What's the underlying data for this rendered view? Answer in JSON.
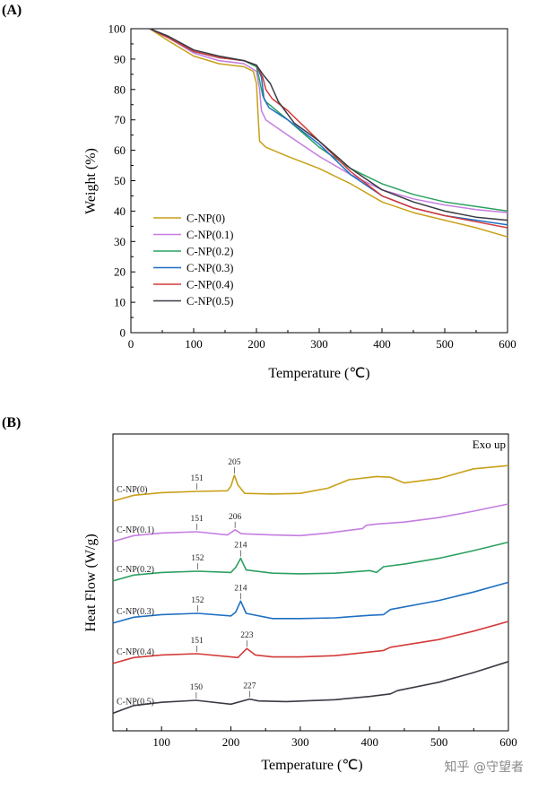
{
  "chart_data": [
    {
      "panel": "(A)",
      "type": "line",
      "xlabel": "Temperature (℃)",
      "ylabel": "Weight (%)",
      "xlim": [
        0,
        600
      ],
      "ylim": [
        0,
        100
      ],
      "xticks": [
        0,
        100,
        200,
        300,
        400,
        500,
        600
      ],
      "yticks": [
        0,
        10,
        20,
        30,
        40,
        50,
        60,
        70,
        80,
        90,
        100
      ],
      "grid": false,
      "legend_position": "bottom-left",
      "series": [
        {
          "name": "C-NP(0)",
          "color": "#c8a018",
          "points": [
            [
              30,
              100
            ],
            [
              60,
              96
            ],
            [
              100,
              91
            ],
            [
              140,
              88.5
            ],
            [
              180,
              87.5
            ],
            [
              195,
              86
            ],
            [
              200,
              82
            ],
            [
              203,
              70
            ],
            [
              205,
              63
            ],
            [
              215,
              61
            ],
            [
              250,
              58
            ],
            [
              300,
              54
            ],
            [
              350,
              49
            ],
            [
              400,
              43
            ],
            [
              450,
              39.5
            ],
            [
              500,
              37
            ],
            [
              550,
              34.5
            ],
            [
              600,
              31.5
            ]
          ]
        },
        {
          "name": "C-NP(0.1)",
          "color": "#c47ee0",
          "points": [
            [
              30,
              100
            ],
            [
              60,
              97
            ],
            [
              100,
              92
            ],
            [
              140,
              89.5
            ],
            [
              180,
              88.5
            ],
            [
              200,
              86
            ],
            [
              205,
              80
            ],
            [
              208,
              73
            ],
            [
              215,
              70
            ],
            [
              250,
              65
            ],
            [
              300,
              58
            ],
            [
              350,
              52
            ],
            [
              400,
              47
            ],
            [
              450,
              44
            ],
            [
              500,
              42
            ],
            [
              550,
              40.5
            ],
            [
              600,
              39.5
            ]
          ]
        },
        {
          "name": "C-NP(0.2)",
          "color": "#2ca060",
          "points": [
            [
              30,
              100
            ],
            [
              60,
              97
            ],
            [
              100,
              92.5
            ],
            [
              140,
              90.5
            ],
            [
              180,
              89.5
            ],
            [
              200,
              87.5
            ],
            [
              205,
              83
            ],
            [
              210,
              78
            ],
            [
              215,
              76
            ],
            [
              250,
              70
            ],
            [
              300,
              61
            ],
            [
              350,
              54
            ],
            [
              400,
              49
            ],
            [
              450,
              45.5
            ],
            [
              500,
              43
            ],
            [
              550,
              41.5
            ],
            [
              600,
              40
            ]
          ]
        },
        {
          "name": "C-NP(0.3)",
          "color": "#1f6fc4",
          "points": [
            [
              30,
              100
            ],
            [
              60,
              97
            ],
            [
              100,
              92.5
            ],
            [
              140,
              90.5
            ],
            [
              180,
              89.5
            ],
            [
              200,
              88
            ],
            [
              208,
              84
            ],
            [
              212,
              77
            ],
            [
              220,
              74
            ],
            [
              250,
              70
            ],
            [
              300,
              62
            ],
            [
              350,
              52
            ],
            [
              400,
              45
            ],
            [
              450,
              41
            ],
            [
              500,
              38.5
            ],
            [
              550,
              37
            ],
            [
              600,
              35.5
            ]
          ]
        },
        {
          "name": "C-NP(0.4)",
          "color": "#d43a3a",
          "points": [
            [
              30,
              100
            ],
            [
              60,
              97
            ],
            [
              100,
              92.5
            ],
            [
              140,
              90.5
            ],
            [
              180,
              89.5
            ],
            [
              200,
              88
            ],
            [
              210,
              84
            ],
            [
              215,
              80
            ],
            [
              225,
              77
            ],
            [
              250,
              73
            ],
            [
              300,
              63
            ],
            [
              350,
              53
            ],
            [
              400,
              45
            ],
            [
              450,
              41
            ],
            [
              500,
              38.5
            ],
            [
              550,
              36.5
            ],
            [
              600,
              34.5
            ]
          ]
        },
        {
          "name": "C-NP(0.5)",
          "color": "#3a3a44",
          "points": [
            [
              30,
              100
            ],
            [
              60,
              97.5
            ],
            [
              100,
              93
            ],
            [
              140,
              91
            ],
            [
              180,
              89.5
            ],
            [
              200,
              88
            ],
            [
              212,
              84.5
            ],
            [
              222,
              82
            ],
            [
              235,
              76
            ],
            [
              260,
              69
            ],
            [
              300,
              63
            ],
            [
              350,
              54
            ],
            [
              400,
              47
            ],
            [
              450,
              43
            ],
            [
              500,
              40
            ],
            [
              550,
              38
            ],
            [
              600,
              37
            ]
          ]
        }
      ]
    },
    {
      "panel": "(B)",
      "type": "line",
      "xlabel": "Temperature (℃)",
      "ylabel": "Heat Flow (W/g)",
      "xlim": [
        30,
        600
      ],
      "xticks": [
        100,
        200,
        300,
        400,
        500,
        600
      ],
      "annotation_corner": "Exo up",
      "grid": false,
      "series": [
        {
          "name": "C-NP(0)",
          "color": "#c8a018",
          "peak_labels": [
            "151",
            "205"
          ],
          "peaks": [
            151,
            205
          ],
          "points": [
            [
              30,
              -1.5
            ],
            [
              60,
              -0.6
            ],
            [
              100,
              -0.2
            ],
            [
              151,
              0
            ],
            [
              195,
              0.1
            ],
            [
              200,
              0.8
            ],
            [
              205,
              2.5
            ],
            [
              210,
              1.0
            ],
            [
              220,
              -0.3
            ],
            [
              260,
              -0.4
            ],
            [
              300,
              -0.3
            ],
            [
              340,
              0.5
            ],
            [
              370,
              1.8
            ],
            [
              410,
              2.3
            ],
            [
              430,
              2.2
            ],
            [
              450,
              1.3
            ],
            [
              500,
              2.0
            ],
            [
              550,
              3.5
            ],
            [
              600,
              4.0
            ]
          ]
        },
        {
          "name": "C-NP(0.1)",
          "color": "#c47ee0",
          "peak_labels": [
            "151",
            "206"
          ],
          "peaks": [
            151,
            206
          ],
          "points": [
            [
              30,
              -1.5
            ],
            [
              60,
              -0.6
            ],
            [
              100,
              -0.2
            ],
            [
              151,
              0
            ],
            [
              195,
              -0.5
            ],
            [
              206,
              0.3
            ],
            [
              215,
              -0.3
            ],
            [
              260,
              -0.5
            ],
            [
              300,
              -0.6
            ],
            [
              340,
              -0.2
            ],
            [
              390,
              0.5
            ],
            [
              395,
              1.0
            ],
            [
              410,
              1.2
            ],
            [
              450,
              1.5
            ],
            [
              500,
              2.2
            ],
            [
              550,
              3.2
            ],
            [
              600,
              4.3
            ]
          ]
        },
        {
          "name": "C-NP(0.2)",
          "color": "#2ca060",
          "peak_labels": [
            "152",
            "214"
          ],
          "peaks": [
            152,
            214
          ],
          "points": [
            [
              30,
              -1.5
            ],
            [
              60,
              -0.6
            ],
            [
              100,
              -0.2
            ],
            [
              152,
              0
            ],
            [
              200,
              -0.2
            ],
            [
              207,
              0.6
            ],
            [
              214,
              2.0
            ],
            [
              222,
              0.2
            ],
            [
              260,
              -0.3
            ],
            [
              300,
              -0.4
            ],
            [
              350,
              -0.3
            ],
            [
              400,
              0.1
            ],
            [
              410,
              -0.2
            ],
            [
              420,
              0.7
            ],
            [
              450,
              1.1
            ],
            [
              500,
              2.0
            ],
            [
              550,
              3.2
            ],
            [
              600,
              4.5
            ]
          ]
        },
        {
          "name": "C-NP(0.3)",
          "color": "#1f6fc4",
          "peak_labels": [
            "152",
            "214"
          ],
          "peaks": [
            152,
            214
          ],
          "points": [
            [
              30,
              -1.5
            ],
            [
              60,
              -0.6
            ],
            [
              100,
              -0.2
            ],
            [
              152,
              0
            ],
            [
              200,
              -0.4
            ],
            [
              207,
              0.2
            ],
            [
              214,
              1.9
            ],
            [
              222,
              0
            ],
            [
              260,
              -0.8
            ],
            [
              300,
              -0.8
            ],
            [
              350,
              -0.7
            ],
            [
              400,
              -0.3
            ],
            [
              420,
              -0.2
            ],
            [
              430,
              0.6
            ],
            [
              500,
              2.0
            ],
            [
              550,
              3.3
            ],
            [
              600,
              4.8
            ]
          ]
        },
        {
          "name": "C-NP(0.4)",
          "color": "#d43a3a",
          "peak_labels": [
            "151",
            "223"
          ],
          "peaks": [
            151,
            223
          ],
          "points": [
            [
              30,
              -1.5
            ],
            [
              60,
              -0.6
            ],
            [
              100,
              -0.2
            ],
            [
              151,
              0
            ],
            [
              210,
              -0.6
            ],
            [
              223,
              0.8
            ],
            [
              235,
              -0.2
            ],
            [
              260,
              -0.5
            ],
            [
              300,
              -0.5
            ],
            [
              350,
              -0.3
            ],
            [
              420,
              0.5
            ],
            [
              430,
              1.0
            ],
            [
              500,
              2.2
            ],
            [
              550,
              3.5
            ],
            [
              600,
              5.0
            ]
          ]
        },
        {
          "name": "C-NP(0.5)",
          "color": "#3a3a44",
          "peak_labels": [
            "150",
            "227"
          ],
          "peaks": [
            150,
            227
          ],
          "points": [
            [
              30,
              -2.0
            ],
            [
              60,
              -0.8
            ],
            [
              100,
              -0.3
            ],
            [
              150,
              0
            ],
            [
              200,
              -0.6
            ],
            [
              227,
              0.2
            ],
            [
              240,
              -0.1
            ],
            [
              280,
              -0.2
            ],
            [
              350,
              0.1
            ],
            [
              400,
              0.6
            ],
            [
              430,
              1.0
            ],
            [
              440,
              1.5
            ],
            [
              500,
              2.8
            ],
            [
              550,
              4.3
            ],
            [
              600,
              6.0
            ]
          ]
        }
      ]
    }
  ],
  "watermark": "知乎 @守望者"
}
